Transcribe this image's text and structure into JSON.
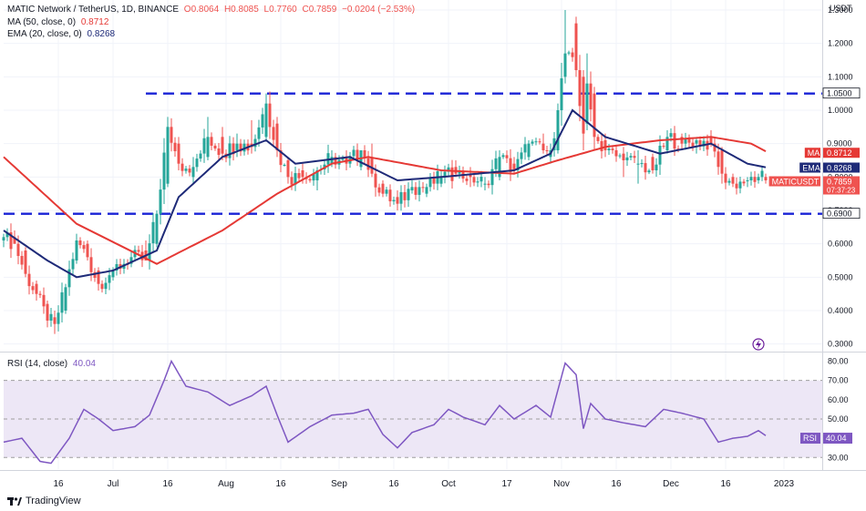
{
  "header": {
    "symbol": "MATIC Network / TetherUS, 1D, BINANCE",
    "open": "O0.8064",
    "high": "H0.8085",
    "low": "L0.7760",
    "close": "C0.7859",
    "change": "−0.0204 (−2.53%)"
  },
  "indicators": {
    "ma_label": "MA (50, close, 0)",
    "ma_value": "0.8712",
    "ema_label": "EMA (20, close, 0)",
    "ema_value": "0.8268",
    "rsi_label": "RSI (14, close)",
    "rsi_value": "40.04"
  },
  "brand": "TradingView",
  "colors": {
    "up": "#26a69a",
    "down": "#ef5350",
    "ma": "#e53935",
    "ema": "#1e2a78",
    "rsi": "#7e57c2",
    "level": "#1a23d6",
    "rsi_band": "#ede7f6"
  },
  "price_axis": {
    "unit": "USDT",
    "ticks": [
      "1.3000",
      "1.2000",
      "1.1000",
      "1.0000",
      "0.9000",
      "0.8000",
      "0.7000",
      "0.6000",
      "0.5000",
      "0.4000",
      "0.3000"
    ],
    "tick_values": [
      1.3,
      1.2,
      1.1,
      1.0,
      0.9,
      0.8,
      0.7,
      0.6,
      0.5,
      0.4,
      0.3
    ]
  },
  "rsi_axis": {
    "ticks": [
      "80.00",
      "70.00",
      "60.00",
      "50.00",
      "40.00",
      "30.00"
    ],
    "tick_values": [
      80,
      70,
      60,
      50,
      40,
      30
    ]
  },
  "time_axis": {
    "labels": [
      "16",
      "Jul",
      "16",
      "Aug",
      "16",
      "Sep",
      "16",
      "Oct",
      "17",
      "Nov",
      "16",
      "Dec",
      "16",
      "2023"
    ],
    "days": [
      15,
      30,
      45,
      61,
      76,
      92,
      107,
      122,
      138,
      153,
      168,
      183,
      198,
      214
    ]
  },
  "price_tags": [
    {
      "text": "1.0500",
      "value": 1.05,
      "kind": "level"
    },
    {
      "text": "0.9000",
      "value": 0.9,
      "kind": "tick"
    },
    {
      "text": "0.8712",
      "value": 0.8712,
      "kind": "ma",
      "label": "MA"
    },
    {
      "text": "0.8268",
      "value": 0.8268,
      "kind": "ema",
      "label": "EMA"
    },
    {
      "text": "0.7859",
      "value": 0.7859,
      "kind": "last",
      "label": "MATICUSDT",
      "sub": "07:37:23"
    },
    {
      "text": "0.6900",
      "value": 0.69,
      "kind": "level"
    }
  ],
  "rsi_tag": {
    "label": "RSI",
    "text": "40.04",
    "value": 40.04
  },
  "chart_data": {
    "type": "candlestick",
    "x_unit": "day index (day 0 = 1 Jun 2022)",
    "series_points_ohlc_sample": [
      [
        0,
        0.61,
        0.63,
        0.59,
        0.62
      ],
      [
        3,
        0.62,
        0.64,
        0.6,
        0.6
      ],
      [
        6,
        0.58,
        0.59,
        0.5,
        0.51
      ],
      [
        9,
        0.48,
        0.49,
        0.43,
        0.45
      ],
      [
        12,
        0.42,
        0.43,
        0.35,
        0.37
      ],
      [
        14,
        0.38,
        0.4,
        0.33,
        0.36
      ],
      [
        17,
        0.4,
        0.48,
        0.39,
        0.47
      ],
      [
        20,
        0.55,
        0.63,
        0.54,
        0.61
      ],
      [
        23,
        0.6,
        0.61,
        0.55,
        0.56
      ],
      [
        26,
        0.52,
        0.53,
        0.46,
        0.48
      ],
      [
        30,
        0.5,
        0.53,
        0.49,
        0.52
      ],
      [
        35,
        0.54,
        0.58,
        0.53,
        0.56
      ],
      [
        39,
        0.58,
        0.61,
        0.56,
        0.55
      ],
      [
        42,
        0.6,
        0.7,
        0.59,
        0.69
      ],
      [
        45,
        0.78,
        0.98,
        0.77,
        0.95
      ],
      [
        48,
        0.9,
        0.92,
        0.82,
        0.84
      ],
      [
        52,
        0.8,
        0.86,
        0.78,
        0.83
      ],
      [
        56,
        0.86,
        0.98,
        0.85,
        0.92
      ],
      [
        60,
        0.92,
        0.95,
        0.85,
        0.87
      ],
      [
        64,
        0.88,
        0.93,
        0.86,
        0.9
      ],
      [
        68,
        0.9,
        0.97,
        0.87,
        0.89
      ],
      [
        72,
        0.92,
        1.05,
        0.91,
        1.02
      ],
      [
        75,
        0.96,
        0.98,
        0.86,
        0.88
      ],
      [
        78,
        0.85,
        0.86,
        0.78,
        0.8
      ],
      [
        82,
        0.82,
        0.84,
        0.78,
        0.8
      ],
      [
        86,
        0.79,
        0.83,
        0.76,
        0.82
      ],
      [
        90,
        0.84,
        0.88,
        0.83,
        0.86
      ],
      [
        94,
        0.86,
        0.88,
        0.82,
        0.84
      ],
      [
        98,
        0.83,
        0.88,
        0.82,
        0.88
      ],
      [
        101,
        0.86,
        0.9,
        0.8,
        0.81
      ],
      [
        104,
        0.78,
        0.79,
        0.74,
        0.75
      ],
      [
        108,
        0.74,
        0.76,
        0.7,
        0.72
      ],
      [
        112,
        0.76,
        0.79,
        0.75,
        0.77
      ],
      [
        116,
        0.75,
        0.78,
        0.74,
        0.77
      ],
      [
        120,
        0.78,
        0.82,
        0.77,
        0.8
      ],
      [
        124,
        0.83,
        0.85,
        0.8,
        0.81
      ],
      [
        128,
        0.81,
        0.83,
        0.77,
        0.8
      ],
      [
        132,
        0.78,
        0.8,
        0.76,
        0.78
      ],
      [
        136,
        0.8,
        0.88,
        0.79,
        0.86
      ],
      [
        140,
        0.84,
        0.86,
        0.81,
        0.82
      ],
      [
        144,
        0.86,
        0.91,
        0.85,
        0.9
      ],
      [
        148,
        0.9,
        0.93,
        0.87,
        0.88
      ],
      [
        150,
        0.86,
        0.9,
        0.84,
        0.88
      ],
      [
        152,
        0.88,
        1.02,
        0.87,
        1.0
      ],
      [
        154,
        1.1,
        1.3,
        1.08,
        1.17
      ],
      [
        157,
        1.26,
        1.28,
        1.1,
        1.12
      ],
      [
        159,
        1.1,
        1.12,
        0.88,
        0.93
      ],
      [
        160,
        0.96,
        1.17,
        0.94,
        1.08
      ],
      [
        162,
        1.05,
        1.07,
        0.88,
        0.92
      ],
      [
        165,
        0.91,
        0.93,
        0.86,
        0.88
      ],
      [
        170,
        0.87,
        0.89,
        0.8,
        0.85
      ],
      [
        174,
        0.84,
        0.88,
        0.78,
        0.84
      ],
      [
        178,
        0.86,
        0.87,
        0.81,
        0.82
      ],
      [
        182,
        0.88,
        0.94,
        0.87,
        0.92
      ],
      [
        186,
        0.92,
        0.93,
        0.88,
        0.9
      ],
      [
        190,
        0.9,
        0.92,
        0.87,
        0.91
      ],
      [
        194,
        0.92,
        0.94,
        0.89,
        0.9
      ],
      [
        197,
        0.88,
        0.89,
        0.78,
        0.81
      ],
      [
        200,
        0.8,
        0.81,
        0.77,
        0.78
      ],
      [
        204,
        0.79,
        0.8,
        0.77,
        0.79
      ],
      [
        207,
        0.79,
        0.81,
        0.78,
        0.8
      ],
      [
        209,
        0.8,
        0.81,
        0.78,
        0.79
      ]
    ],
    "ma50_sample": [
      [
        0,
        0.86
      ],
      [
        20,
        0.66
      ],
      [
        42,
        0.54
      ],
      [
        60,
        0.64
      ],
      [
        75,
        0.75
      ],
      [
        90,
        0.84
      ],
      [
        100,
        0.86
      ],
      [
        120,
        0.82
      ],
      [
        140,
        0.81
      ],
      [
        152,
        0.85
      ],
      [
        165,
        0.89
      ],
      [
        180,
        0.91
      ],
      [
        194,
        0.92
      ],
      [
        205,
        0.9
      ],
      [
        210,
        0.8712
      ]
    ],
    "ema20_sample": [
      [
        0,
        0.64
      ],
      [
        12,
        0.55
      ],
      [
        20,
        0.5
      ],
      [
        30,
        0.52
      ],
      [
        42,
        0.58
      ],
      [
        48,
        0.74
      ],
      [
        60,
        0.86
      ],
      [
        72,
        0.91
      ],
      [
        80,
        0.84
      ],
      [
        95,
        0.86
      ],
      [
        108,
        0.79
      ],
      [
        120,
        0.8
      ],
      [
        140,
        0.82
      ],
      [
        150,
        0.87
      ],
      [
        156,
        1.0
      ],
      [
        165,
        0.92
      ],
      [
        180,
        0.87
      ],
      [
        194,
        0.9
      ],
      [
        204,
        0.84
      ],
      [
        210,
        0.8268
      ]
    ],
    "rsi_sample": [
      [
        0,
        38
      ],
      [
        5,
        40
      ],
      [
        10,
        28
      ],
      [
        13,
        27
      ],
      [
        18,
        40
      ],
      [
        22,
        55
      ],
      [
        26,
        50
      ],
      [
        30,
        44
      ],
      [
        36,
        46
      ],
      [
        40,
        52
      ],
      [
        44,
        70
      ],
      [
        46,
        80
      ],
      [
        50,
        67
      ],
      [
        56,
        64
      ],
      [
        62,
        57
      ],
      [
        68,
        62
      ],
      [
        72,
        67
      ],
      [
        75,
        52
      ],
      [
        78,
        38
      ],
      [
        84,
        46
      ],
      [
        90,
        52
      ],
      [
        96,
        53
      ],
      [
        100,
        55
      ],
      [
        104,
        42
      ],
      [
        108,
        35
      ],
      [
        112,
        43
      ],
      [
        118,
        47
      ],
      [
        122,
        55
      ],
      [
        126,
        51
      ],
      [
        132,
        47
      ],
      [
        136,
        57
      ],
      [
        140,
        50
      ],
      [
        146,
        57
      ],
      [
        150,
        51
      ],
      [
        154,
        79
      ],
      [
        157,
        73
      ],
      [
        159,
        45
      ],
      [
        161,
        58
      ],
      [
        165,
        50
      ],
      [
        170,
        48
      ],
      [
        176,
        46
      ],
      [
        181,
        55
      ],
      [
        186,
        53
      ],
      [
        192,
        50
      ],
      [
        196,
        38
      ],
      [
        200,
        40
      ],
      [
        204,
        41
      ],
      [
        207,
        44
      ],
      [
        210,
        40.04
      ]
    ],
    "levels": [
      1.05,
      0.69
    ],
    "ylim": [
      0.28,
      1.33
    ],
    "rsi_ylim": [
      24,
      84
    ],
    "rsi_band": [
      30,
      70
    ]
  }
}
